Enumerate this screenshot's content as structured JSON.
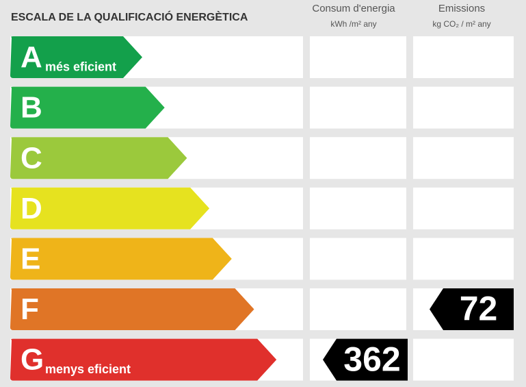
{
  "header": {
    "title": "ESCALA DE LA QUALIFICACIÓ ENERGÈTICA",
    "columns": [
      {
        "title": "Consum d'energia",
        "unit": "kWh /m² any"
      },
      {
        "title": "Emissions",
        "unit": "kg CO₂ / m² any"
      }
    ]
  },
  "classes": [
    {
      "letter": "A",
      "label": "més eficient",
      "color": "#13a04b"
    },
    {
      "letter": "B",
      "color": "#24b04b"
    },
    {
      "letter": "C",
      "color": "#9bc93c"
    },
    {
      "letter": "D",
      "color": "#e6e21f"
    },
    {
      "letter": "E",
      "color": "#efb419"
    },
    {
      "letter": "F",
      "color": "#e07526",
      "emissions": 72
    },
    {
      "letter": "G",
      "label": "menys eficient",
      "color": "#e0302c",
      "energy": 362
    }
  ]
}
